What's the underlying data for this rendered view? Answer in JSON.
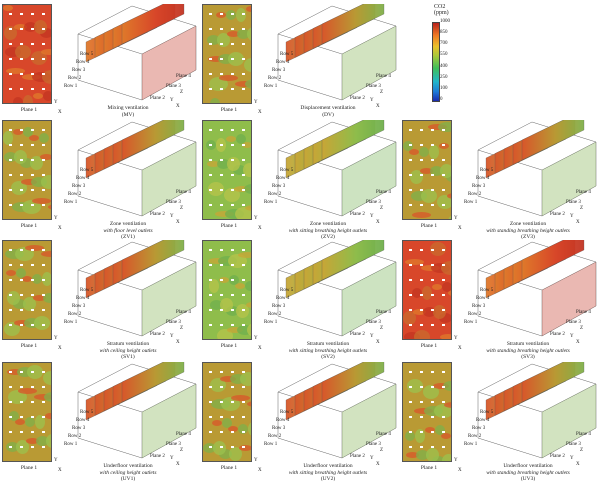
{
  "legend": {
    "title": "CO2",
    "unit": "(ppm)",
    "ticks": [
      "1000",
      "850",
      "700",
      "550",
      "400",
      "250",
      "100",
      "0"
    ],
    "colors": [
      "#1b2bb0",
      "#22b7c9",
      "#3fbf5a",
      "#a9c93a",
      "#e9c12c",
      "#ee7a25",
      "#b8221c"
    ]
  },
  "labels": {
    "plane1": "Plane 1",
    "plane2": "Plane 2",
    "plane3": "Plane 3",
    "plane4": "Plane 4",
    "rows": [
      "Row 1",
      "Row 2",
      "Row 3",
      "Row 4",
      "Row 5"
    ],
    "axis_x": "X",
    "axis_y": "Y",
    "axis_z": "Z"
  },
  "panels": [
    {
      "caption_l1": "Mixing ventilation",
      "caption_l2": "",
      "caption_l3": "(MV)",
      "tone": "red"
    },
    {
      "caption_l1": "Displacement ventilation",
      "caption_l2": "",
      "caption_l3": "(DV)",
      "tone": "mixed"
    },
    {
      "caption_l1": "Zone ventilation",
      "caption_l2": "with floor level outlets",
      "caption_l3": "(ZV1)",
      "tone": "mixed"
    },
    {
      "caption_l1": "Zone ventilation",
      "caption_l2": "with sitting breathing height outlets",
      "caption_l3": "(ZV2)",
      "tone": "green"
    },
    {
      "caption_l1": "Zone ventilation",
      "caption_l2": "with standing breathing height outlets",
      "caption_l3": "(ZV3)",
      "tone": "mixed"
    },
    {
      "caption_l1": "Stratum ventilation",
      "caption_l2": "with ceiling height outlets",
      "caption_l3": "(SV1)",
      "tone": "mixed"
    },
    {
      "caption_l1": "Stratum ventilation",
      "caption_l2": "with sitting breathing height outlets",
      "caption_l3": "(SV2)",
      "tone": "green"
    },
    {
      "caption_l1": "Stratum ventilation",
      "caption_l2": "with standing breathing height outlets",
      "caption_l3": "(SV3)",
      "tone": "red"
    },
    {
      "caption_l1": "Underfloor ventilation",
      "caption_l2": "with ceiling height outlets",
      "caption_l3": "(UV1)",
      "tone": "mixed"
    },
    {
      "caption_l1": "Underfloor ventilation",
      "caption_l2": "with sitting breathing height outlets",
      "caption_l3": "(UV2)",
      "tone": "mixed"
    },
    {
      "caption_l1": "Underfloor ventilation",
      "caption_l2": "with standing breathing height outlets",
      "caption_l3": "(UV3)",
      "tone": "mixed"
    }
  ]
}
